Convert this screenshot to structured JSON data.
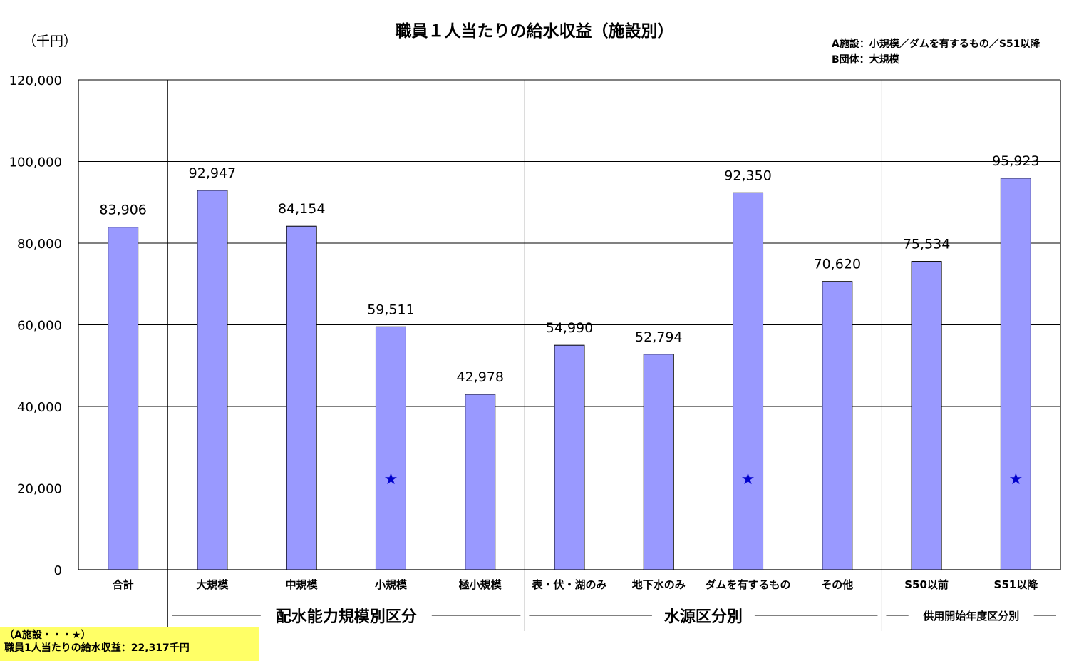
{
  "chart_data": {
    "type": "bar",
    "title": "職員１人当たりの給水収益（施設別）",
    "unit_label": "（千円）",
    "notes": [
      "A施設：小規模／ダムを有するもの／S51以降",
      "B団体：大規模"
    ],
    "ylim": [
      0,
      120000
    ],
    "yticks": [
      "0",
      "20,000",
      "40,000",
      "60,000",
      "80,000",
      "100,000",
      "120,000"
    ],
    "grid": true,
    "categories": [
      "合計",
      "大規模",
      "中規模",
      "小規模",
      "極小規模",
      "表・伏・湖のみ",
      "地下水のみ",
      "ダムを有するもの",
      "その他",
      "S50以前",
      "S51以降"
    ],
    "values": [
      83906,
      92947,
      84154,
      59511,
      42978,
      54990,
      52794,
      92350,
      70620,
      75534,
      95923
    ],
    "value_labels": [
      "83,906",
      "92,947",
      "84,154",
      "59,511",
      "42,978",
      "54,990",
      "52,794",
      "92,350",
      "70,620",
      "75,534",
      "95,923"
    ],
    "groups": [
      {
        "label": "配水能力規模別区分",
        "categories": [
          "大規模",
          "中規模",
          "小規模",
          "極小規模"
        ]
      },
      {
        "label": "水源区分別",
        "categories": [
          "表・伏・湖のみ",
          "地下水のみ",
          "ダムを有するもの",
          "その他"
        ]
      },
      {
        "label": "供用開始年度区分別",
        "categories": [
          "S50以前",
          "S51以降"
        ]
      }
    ],
    "star_marked": [
      "小規模",
      "ダムを有するもの",
      "S51以降"
    ],
    "star_value": 22317,
    "colors": {
      "bar": "#9999ff",
      "star": "#0000cc",
      "grid": "#000000"
    }
  },
  "legend": {
    "line1": "（A施設・・・★）",
    "line2": "職員1人当たりの給水収益：22,317千円"
  }
}
